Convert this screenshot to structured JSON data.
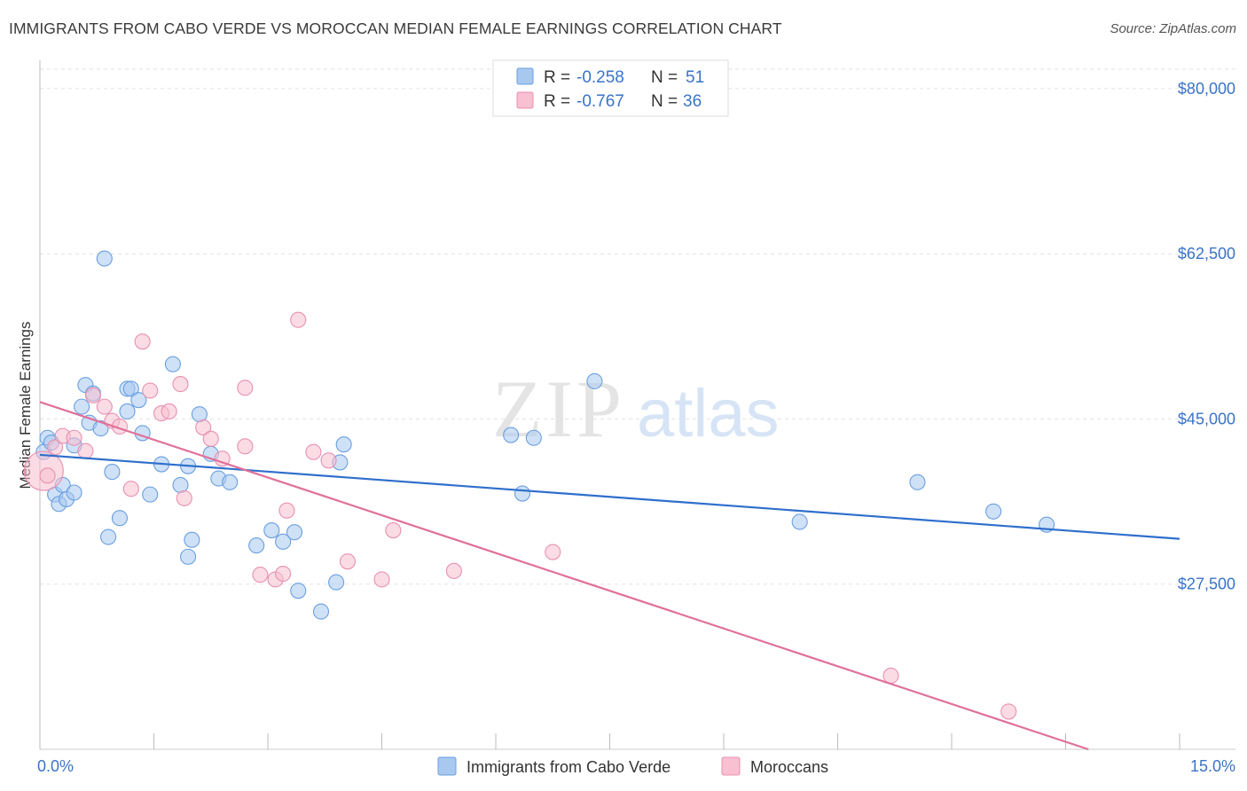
{
  "title": "IMMIGRANTS FROM CABO VERDE VS MOROCCAN MEDIAN FEMALE EARNINGS CORRELATION CHART",
  "source": "Source: ZipAtlas.com",
  "watermark": {
    "zip": "ZIP",
    "atlas": "atlas"
  },
  "legend_top": [
    {
      "r_label": "R =",
      "r_value": "-0.258",
      "n_label": "N =",
      "n_value": "51",
      "color": "#a8c8f0",
      "stroke": "#6a9fe0"
    },
    {
      "r_label": "R =",
      "r_value": "-0.767",
      "n_label": "N =",
      "n_value": "36",
      "color": "#f8c0d0",
      "stroke": "#e890b0"
    }
  ],
  "legend_bottom": [
    {
      "label": "Immigrants from Cabo Verde",
      "color": "#a8c8f0",
      "stroke": "#6a9fe0"
    },
    {
      "label": "Moroccans",
      "color": "#f8c0d0",
      "stroke": "#e890b0"
    }
  ],
  "chart_data": {
    "type": "scatter",
    "title": "IMMIGRANTS FROM CABO VERDE VS MOROCCAN MEDIAN FEMALE EARNINGS CORRELATION CHART",
    "xlabel": "",
    "ylabel": "Median Female Earnings",
    "xlim": [
      0,
      15
    ],
    "ylim": [
      10000,
      83000
    ],
    "x_tick_labels": [
      "0.0%",
      "15.0%"
    ],
    "y_ticks": [
      27500,
      45000,
      62500,
      80000
    ],
    "y_tick_labels": [
      "$27,500",
      "$45,000",
      "$62,500",
      "$80,000"
    ],
    "series": [
      {
        "name": "Immigrants from Cabo Verde",
        "color": "#6a9fe0",
        "fill": "#a8c8f0",
        "trend": {
          "x": [
            0,
            15
          ],
          "y": [
            41200,
            32300
          ],
          "color": "#2f6fcc"
        },
        "points": [
          [
            0.05,
            41.5
          ],
          [
            0.1,
            43.0
          ],
          [
            0.15,
            42.5
          ],
          [
            0.2,
            37.0
          ],
          [
            0.25,
            36.0
          ],
          [
            0.3,
            38.0
          ],
          [
            0.35,
            36.5
          ],
          [
            0.45,
            37.2
          ],
          [
            0.45,
            42.2
          ],
          [
            0.55,
            46.3
          ],
          [
            0.6,
            48.6
          ],
          [
            0.65,
            44.6
          ],
          [
            0.7,
            47.7
          ],
          [
            0.8,
            44.0
          ],
          [
            0.85,
            62.0
          ],
          [
            0.9,
            32.5
          ],
          [
            0.95,
            39.4
          ],
          [
            1.05,
            34.5
          ],
          [
            1.15,
            48.2
          ],
          [
            1.15,
            45.8
          ],
          [
            1.2,
            48.2
          ],
          [
            1.3,
            47.0
          ],
          [
            1.35,
            43.5
          ],
          [
            1.45,
            37.0
          ],
          [
            1.6,
            40.2
          ],
          [
            1.75,
            50.8
          ],
          [
            1.85,
            38.0
          ],
          [
            1.95,
            40.0
          ],
          [
            1.95,
            30.4
          ],
          [
            2.0,
            32.2
          ],
          [
            2.1,
            45.5
          ],
          [
            2.25,
            41.3
          ],
          [
            2.35,
            38.7
          ],
          [
            2.5,
            38.3
          ],
          [
            2.85,
            31.6
          ],
          [
            3.05,
            33.2
          ],
          [
            3.2,
            32.0
          ],
          [
            3.35,
            33.0
          ],
          [
            3.4,
            26.8
          ],
          [
            3.7,
            24.6
          ],
          [
            3.9,
            27.7
          ],
          [
            3.95,
            40.4
          ],
          [
            4.0,
            42.3
          ],
          [
            6.2,
            43.3
          ],
          [
            6.35,
            37.1
          ],
          [
            6.5,
            43.0
          ],
          [
            7.3,
            49.0
          ],
          [
            10.0,
            34.1
          ],
          [
            11.55,
            38.3
          ],
          [
            12.55,
            35.2
          ],
          [
            13.25,
            33.8
          ]
        ]
      },
      {
        "name": "Moroccans",
        "color": "#e890b0",
        "fill": "#f8c0d0",
        "trend": {
          "x": [
            0,
            13.8
          ],
          "y": [
            46800,
            10000
          ],
          "color": "#e0709a"
        },
        "points": [
          [
            0.05,
            39.5
          ],
          [
            0.2,
            42.0
          ],
          [
            0.3,
            43.2
          ],
          [
            0.45,
            43.0
          ],
          [
            0.6,
            41.6
          ],
          [
            0.7,
            47.5
          ],
          [
            0.85,
            46.3
          ],
          [
            0.95,
            44.8
          ],
          [
            1.05,
            44.2
          ],
          [
            1.2,
            37.6
          ],
          [
            1.35,
            53.2
          ],
          [
            1.45,
            48.0
          ],
          [
            1.6,
            45.6
          ],
          [
            1.7,
            45.8
          ],
          [
            1.85,
            48.7
          ],
          [
            1.9,
            36.6
          ],
          [
            2.15,
            44.1
          ],
          [
            2.25,
            42.9
          ],
          [
            2.4,
            40.8
          ],
          [
            2.7,
            42.1
          ],
          [
            2.7,
            48.3
          ],
          [
            2.9,
            28.5
          ],
          [
            3.1,
            28.0
          ],
          [
            3.2,
            28.6
          ],
          [
            3.25,
            35.3
          ],
          [
            3.4,
            55.5
          ],
          [
            3.6,
            41.5
          ],
          [
            3.8,
            40.6
          ],
          [
            4.05,
            29.9
          ],
          [
            4.5,
            28.0
          ],
          [
            4.65,
            33.2
          ],
          [
            5.45,
            28.9
          ],
          [
            6.75,
            30.9
          ],
          [
            11.2,
            17.8
          ],
          [
            12.75,
            14.0
          ],
          [
            0.1,
            39.0
          ]
        ]
      }
    ]
  }
}
